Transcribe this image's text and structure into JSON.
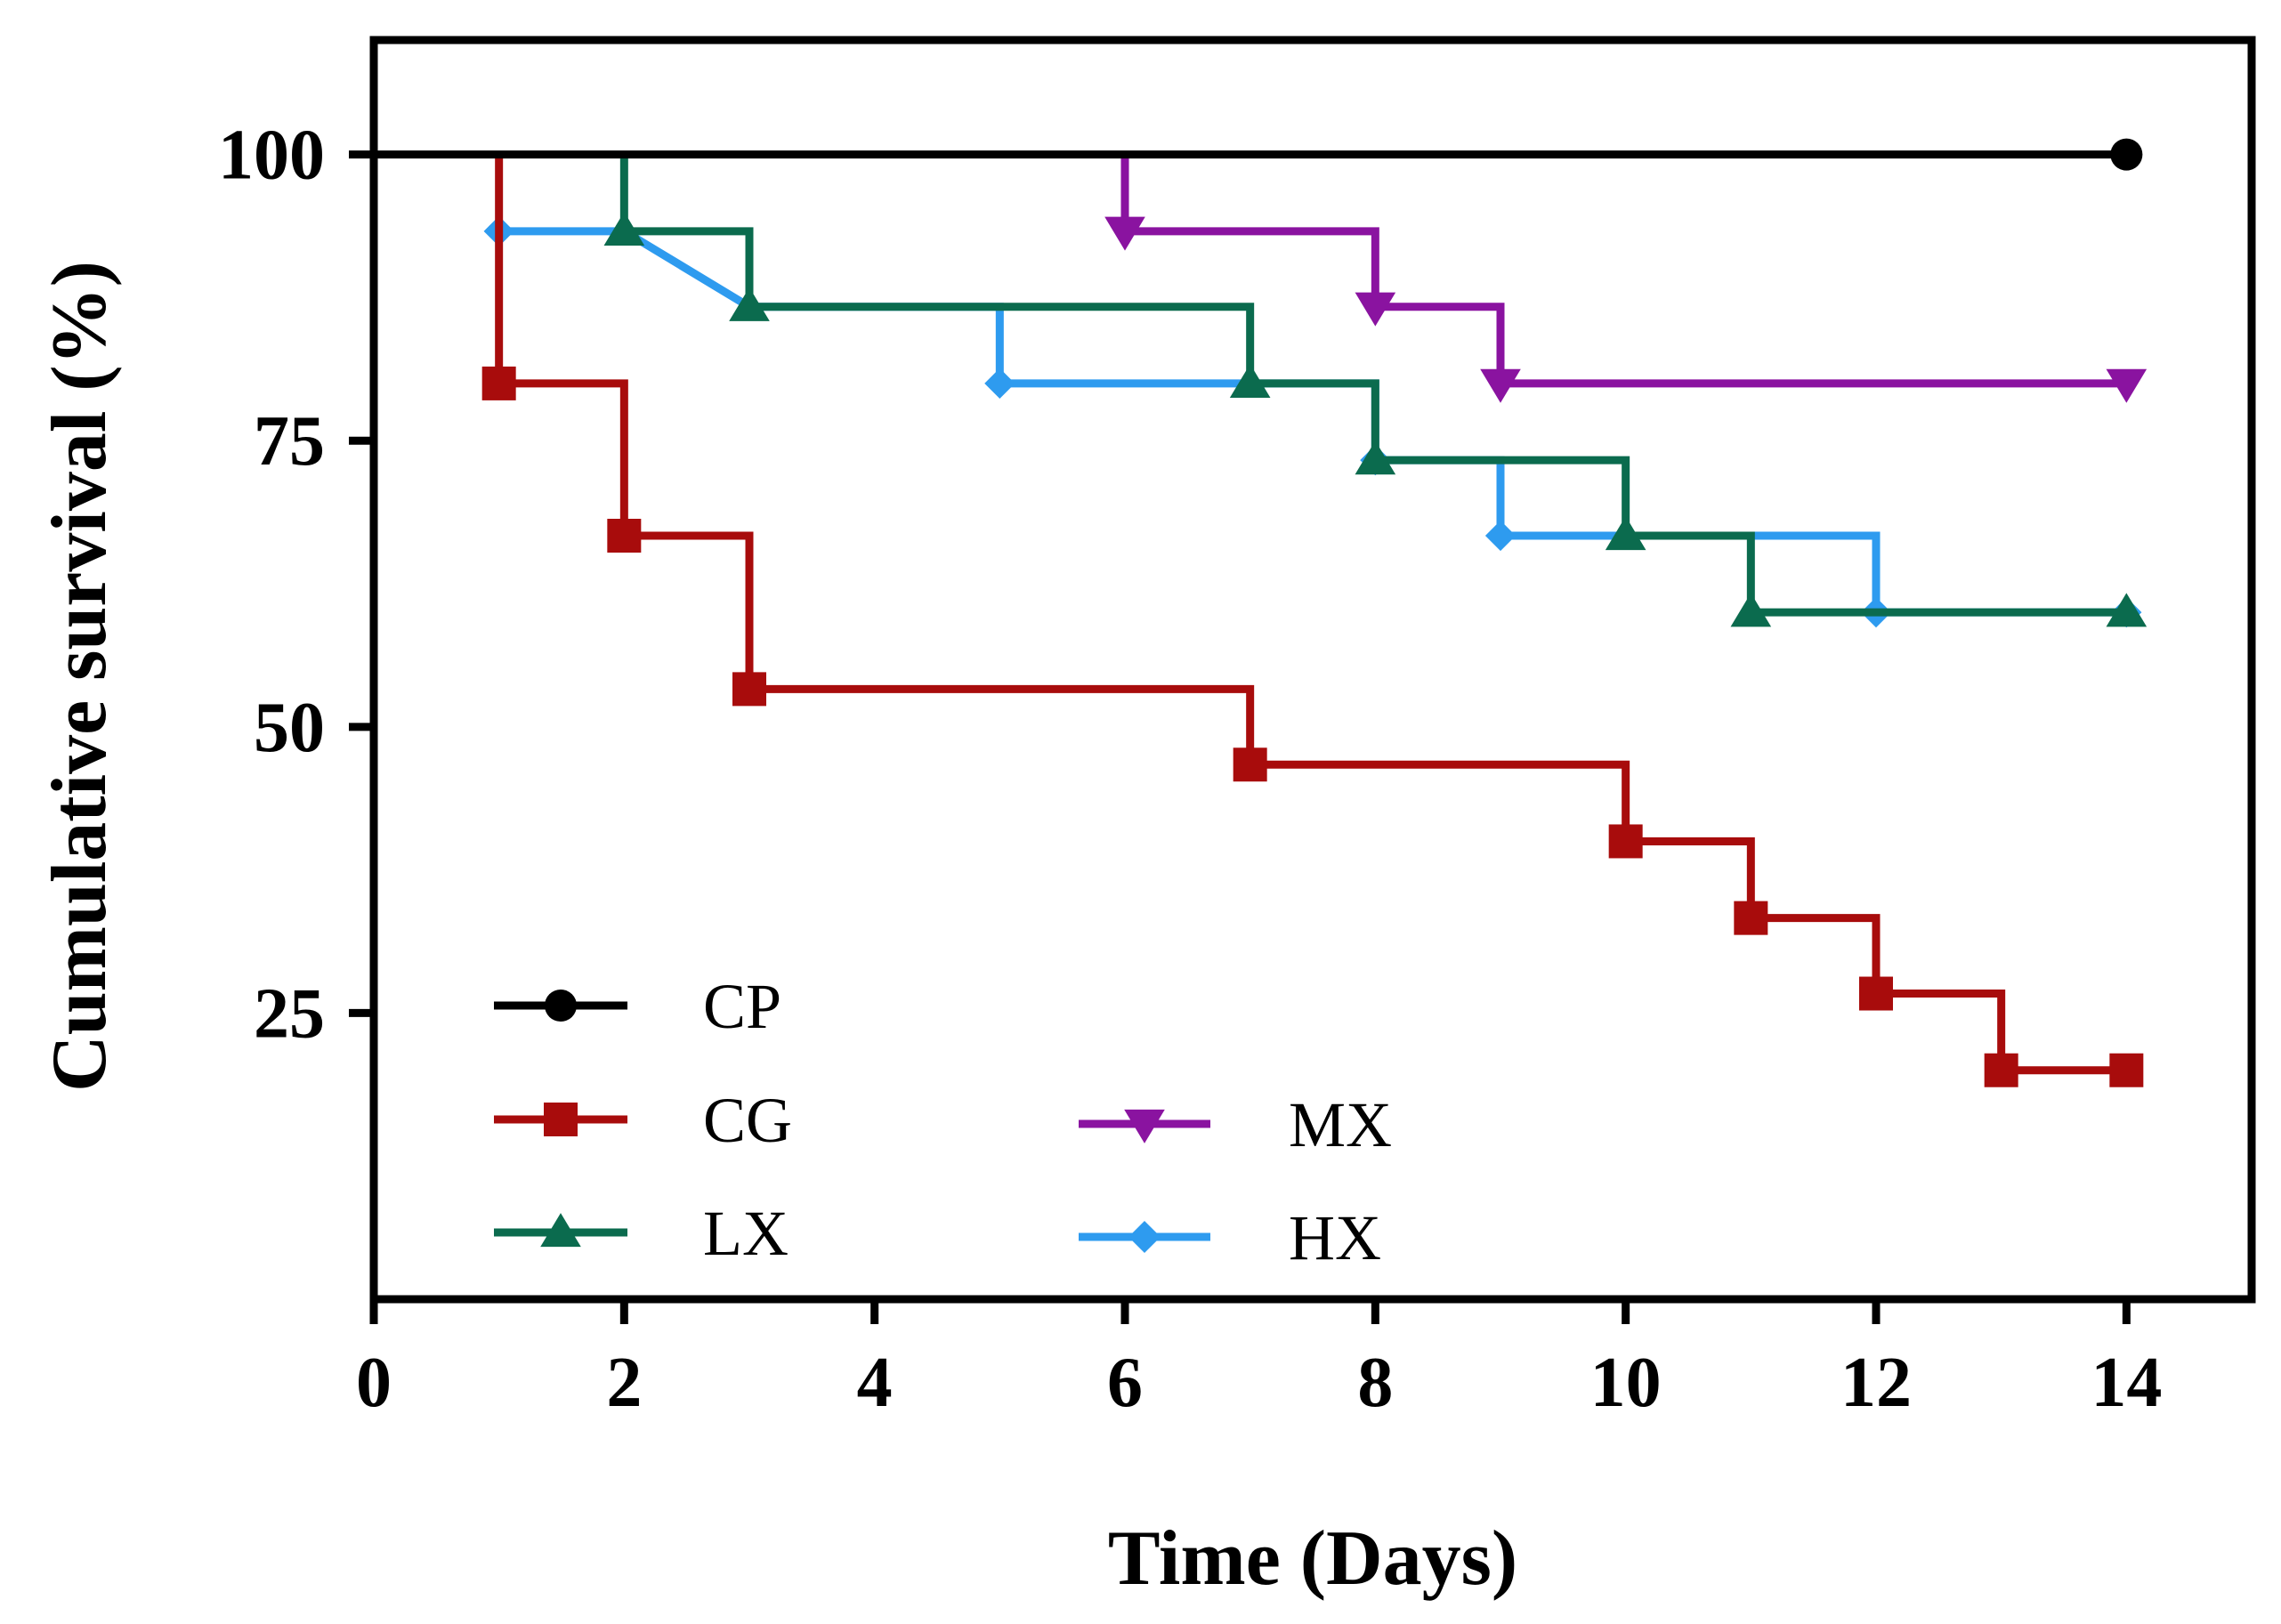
{
  "chart_data": {
    "type": "line",
    "step": true,
    "title": "",
    "xlabel": "Time (Days)",
    "ylabel": "Cumulative survival (%)",
    "xlim": [
      0,
      15
    ],
    "ylim": [
      0,
      110
    ],
    "xticks": [
      0,
      2,
      4,
      6,
      8,
      10,
      12,
      14
    ],
    "yticks": [
      25,
      50,
      75,
      100
    ],
    "xtick_labels": [
      "0",
      "2",
      "4",
      "6",
      "8",
      "10",
      "12",
      "14"
    ],
    "ytick_labels": [
      "25",
      "50",
      "75",
      "100"
    ],
    "grid": false,
    "legend_position": "bottom-left",
    "series": [
      {
        "name": "CP",
        "color": "#000000",
        "marker": "circle",
        "points": [
          [
            0,
            100
          ],
          [
            14,
            100
          ]
        ],
        "marker_points": [
          [
            14,
            100
          ]
        ]
      },
      {
        "name": "CG",
        "color": "#a80c0c",
        "marker": "square",
        "points": [
          [
            1,
            100
          ],
          [
            1,
            80
          ],
          [
            2,
            80
          ],
          [
            2,
            66.7
          ],
          [
            3,
            66.7
          ],
          [
            3,
            53.3
          ],
          [
            7,
            53.3
          ],
          [
            7,
            46.7
          ],
          [
            10,
            46.7
          ],
          [
            10,
            40
          ],
          [
            11,
            40
          ],
          [
            11,
            33.3
          ],
          [
            12,
            33.3
          ],
          [
            12,
            26.7
          ],
          [
            13,
            26.7
          ],
          [
            13,
            20
          ],
          [
            14,
            20
          ]
        ],
        "marker_points": [
          [
            1,
            80
          ],
          [
            2,
            66.7
          ],
          [
            3,
            53.3
          ],
          [
            7,
            46.7
          ],
          [
            10,
            40
          ],
          [
            11,
            33.3
          ],
          [
            12,
            26.7
          ],
          [
            13,
            20
          ],
          [
            14,
            20
          ]
        ]
      },
      {
        "name": "LX",
        "color": "#0b6b4e",
        "marker": "triangle-up",
        "points": [
          [
            2,
            100
          ],
          [
            2,
            93.3
          ],
          [
            3,
            93.3
          ],
          [
            3,
            86.7
          ],
          [
            7,
            86.7
          ],
          [
            7,
            80
          ],
          [
            8,
            80
          ],
          [
            8,
            73.3
          ],
          [
            10,
            73.3
          ],
          [
            10,
            66.7
          ],
          [
            11,
            66.7
          ],
          [
            11,
            60
          ],
          [
            14,
            60
          ]
        ],
        "marker_points": [
          [
            2,
            93.3
          ],
          [
            3,
            86.7
          ],
          [
            7,
            80
          ],
          [
            8,
            73.3
          ],
          [
            10,
            66.7
          ],
          [
            11,
            60
          ],
          [
            14,
            60
          ]
        ]
      },
      {
        "name": "MX",
        "color": "#8a13a0",
        "marker": "triangle-down",
        "points": [
          [
            6,
            100
          ],
          [
            6,
            93.3
          ],
          [
            8,
            93.3
          ],
          [
            8,
            86.7
          ],
          [
            9,
            86.7
          ],
          [
            9,
            80
          ],
          [
            14,
            80
          ]
        ],
        "marker_points": [
          [
            6,
            93.3
          ],
          [
            8,
            86.7
          ],
          [
            9,
            80
          ],
          [
            14,
            80
          ]
        ]
      },
      {
        "name": "HX",
        "color": "#2e9bef",
        "marker": "diamond",
        "points": [
          [
            1,
            93.3
          ],
          [
            2,
            93.3
          ],
          [
            3,
            86.7
          ],
          [
            5,
            86.7
          ],
          [
            5,
            80
          ],
          [
            8,
            80
          ],
          [
            8,
            73.3
          ],
          [
            9,
            73.3
          ],
          [
            9,
            66.7
          ],
          [
            12,
            66.7
          ],
          [
            12,
            60
          ],
          [
            14,
            60
          ]
        ],
        "marker_points": [
          [
            1,
            93.3
          ],
          [
            5,
            80
          ],
          [
            8,
            73.3
          ],
          [
            9,
            66.7
          ],
          [
            12,
            60
          ],
          [
            14,
            60
          ]
        ]
      }
    ]
  }
}
